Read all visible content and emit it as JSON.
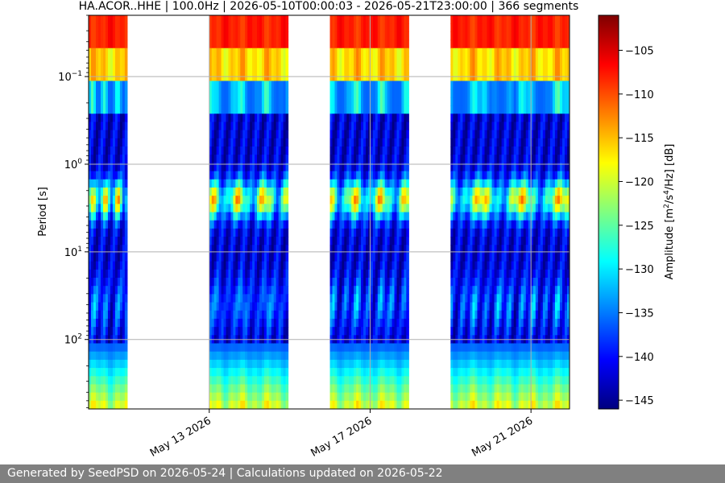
{
  "chart_data": {
    "type": "heatmap",
    "title": "HA.ACOR..HHE | 100.0Hz | 2026-05-10T00:00:03 - 2026-05-21T23:00:00 | 366 segments",
    "ylabel": "Period [s]",
    "colorbar_label": "Amplitude [m²/s⁴/Hz] [dB]",
    "y_scale": "log",
    "y_inverted": true,
    "ylim": [
      0.02,
      620
    ],
    "y_ticks": [
      {
        "value": 0.1,
        "base": "10",
        "exp": "−1"
      },
      {
        "value": 1,
        "base": "10",
        "exp": "0"
      },
      {
        "value": 10,
        "base": "10",
        "exp": "1"
      },
      {
        "value": 100,
        "base": "10",
        "exp": "2"
      }
    ],
    "xlim": [
      "2026-05-10T00:00:03",
      "2026-05-21T23:00:00"
    ],
    "x_ticks": [
      {
        "date": "2026-05-13",
        "label": "May 13 2026"
      },
      {
        "date": "2026-05-17",
        "label": "May 17 2026"
      },
      {
        "date": "2026-05-21",
        "label": "May 21 2026"
      }
    ],
    "data_intervals": [
      [
        "2026-05-10T00:00:03",
        "2026-05-10T23:00:00"
      ],
      [
        "2026-05-13T00:00:00",
        "2026-05-14T23:00:00"
      ],
      [
        "2026-05-16T00:00:00",
        "2026-05-17T23:00:00"
      ],
      [
        "2026-05-19T00:00:00",
        "2026-05-21T23:00:00"
      ]
    ],
    "colorbar_range": [
      -146,
      -101
    ],
    "colorbar_ticks": [
      -105,
      -110,
      -115,
      -120,
      -125,
      -130,
      -135,
      -140,
      -145
    ],
    "colormap": "jet",
    "grid": true,
    "segments": 366
  },
  "footer": {
    "text": "Generated by SeedPSD on 2026-05-24 | Calculations updated on 2026-05-22"
  },
  "colors": {
    "footer_bg": "#808080",
    "grid": "#b0b0b0"
  }
}
